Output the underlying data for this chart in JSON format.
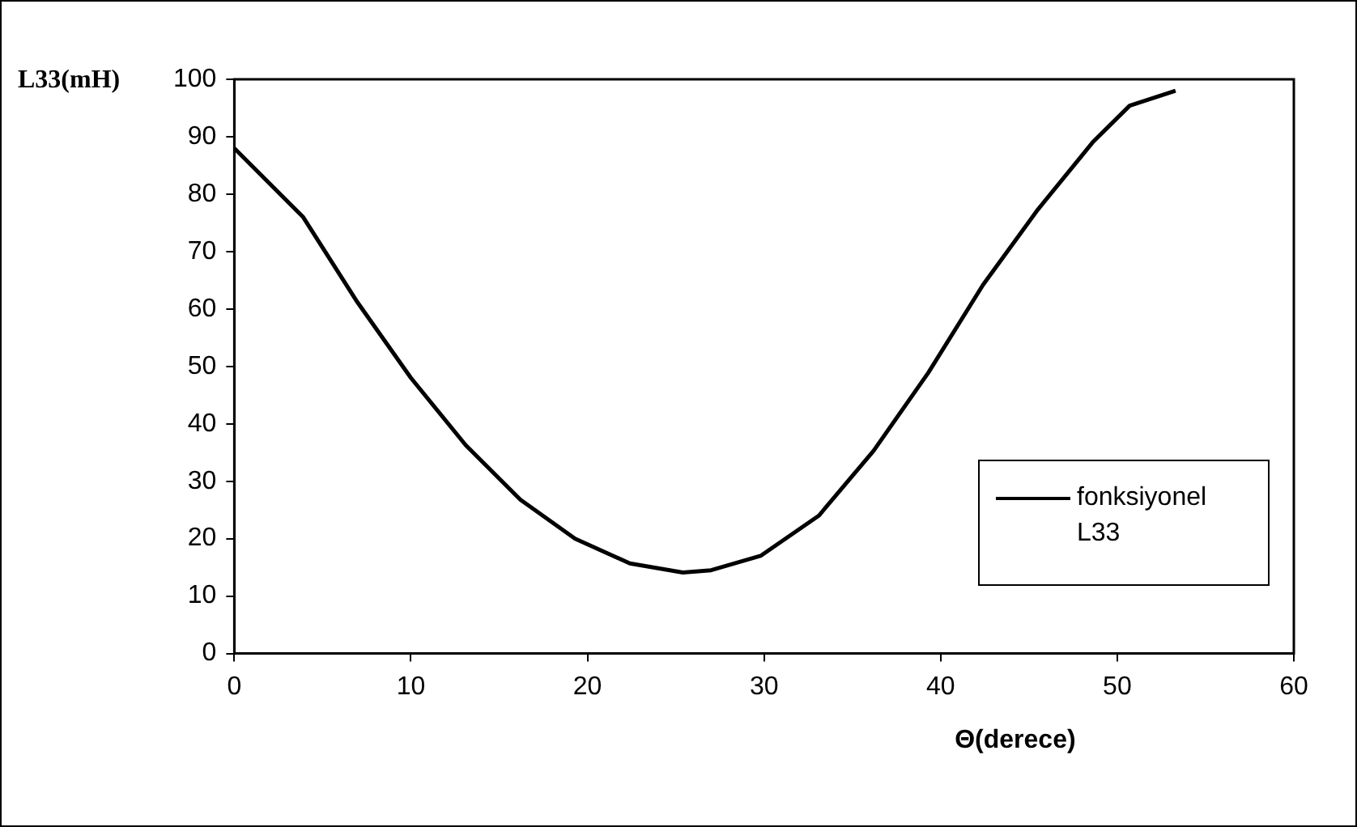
{
  "chart_data": {
    "type": "line",
    "xlabel": "Θ(derece)",
    "ylabel": "L33(mH)",
    "xlim": [
      0,
      60
    ],
    "xticks": [
      0,
      10,
      20,
      30,
      40,
      50,
      60
    ],
    "ylim": [
      0,
      100
    ],
    "yticks": [
      0,
      10,
      20,
      30,
      40,
      50,
      60,
      70,
      80,
      90,
      100
    ],
    "grid": false,
    "legend": "bottom right",
    "marker": "none",
    "line_style": "solid",
    "series": [
      {
        "name": "fonksiyonel L33",
        "color": "#000000",
        "x": [
          0,
          3.9,
          6.9,
          10,
          13.1,
          16.2,
          19.3,
          22.4,
          25.4,
          27,
          29.8,
          33.1,
          36.2,
          39.3,
          42.4,
          45.5,
          48.6,
          50.7,
          53.3
        ],
        "values": [
          88,
          76,
          61.5,
          48,
          36.3,
          26.8,
          20,
          15.7,
          14.1,
          14.5,
          17,
          24,
          35.3,
          48.9,
          64.2,
          77.3,
          89,
          95.4,
          98
        ]
      }
    ]
  }
}
